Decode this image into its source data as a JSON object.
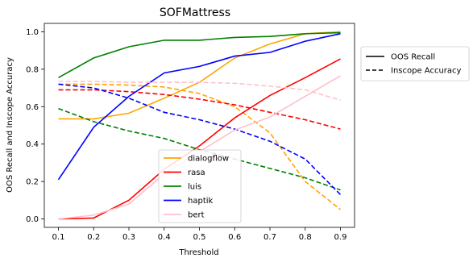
{
  "chart_data": {
    "type": "line",
    "title": "SOFMattress",
    "xlabel": "Threshold",
    "ylabel": "OOS Recall and Inscope Accuracy",
    "x": [
      0.1,
      0.2,
      0.3,
      0.4,
      0.5,
      0.6,
      0.7,
      0.8,
      0.9
    ],
    "xticks": [
      "0.1",
      "0.2",
      "0.3",
      "0.4",
      "0.5",
      "0.6",
      "0.7",
      "0.8",
      "0.9"
    ],
    "yticks": [
      "0.0",
      "0.2",
      "0.4",
      "0.6",
      "0.8",
      "1.0"
    ],
    "yticks_values": [
      0,
      0.2,
      0.4,
      0.6,
      0.8,
      1.0
    ],
    "xlim": [
      0.06,
      0.94
    ],
    "ylim": [
      -0.045,
      1.045
    ],
    "grid": false,
    "series": [
      {
        "name": "dialogflow",
        "color": "#ffa500",
        "oos_recall": [
          0.535,
          0.535,
          0.565,
          0.645,
          0.73,
          0.86,
          0.935,
          0.99,
          1.0
        ],
        "inscope_accuracy": [
          0.72,
          0.72,
          0.715,
          0.705,
          0.67,
          0.6,
          0.46,
          0.2,
          0.05
        ]
      },
      {
        "name": "rasa",
        "color": "#ff0000",
        "oos_recall": [
          0.0,
          0.005,
          0.1,
          0.265,
          0.39,
          0.54,
          0.66,
          0.755,
          0.855
        ],
        "inscope_accuracy": [
          0.69,
          0.69,
          0.68,
          0.665,
          0.64,
          0.61,
          0.57,
          0.53,
          0.48
        ]
      },
      {
        "name": "luis",
        "color": "#008000",
        "oos_recall": [
          0.755,
          0.86,
          0.92,
          0.955,
          0.955,
          0.97,
          0.975,
          0.99,
          0.995
        ],
        "inscope_accuracy": [
          0.59,
          0.52,
          0.47,
          0.43,
          0.37,
          0.32,
          0.27,
          0.22,
          0.155
        ]
      },
      {
        "name": "haptik",
        "color": "#0000ff",
        "oos_recall": [
          0.21,
          0.49,
          0.655,
          0.78,
          0.815,
          0.87,
          0.89,
          0.95,
          0.99
        ],
        "inscope_accuracy": [
          0.72,
          0.7,
          0.645,
          0.57,
          0.53,
          0.48,
          0.415,
          0.32,
          0.13
        ]
      },
      {
        "name": "bert",
        "color": "#ffc0cb",
        "oos_recall": [
          0.0,
          0.02,
          0.08,
          0.24,
          0.36,
          0.475,
          0.545,
          0.655,
          0.765
        ],
        "inscope_accuracy": [
          0.735,
          0.735,
          0.73,
          0.73,
          0.73,
          0.725,
          0.71,
          0.69,
          0.635
        ]
      }
    ],
    "line_style_legend": [
      {
        "label": "OOS Recall",
        "style": "solid"
      },
      {
        "label": "Inscope Accuracy",
        "style": "dashed"
      }
    ],
    "series_legend_placement": "lower-center",
    "style_legend_placement": "outside-right"
  }
}
